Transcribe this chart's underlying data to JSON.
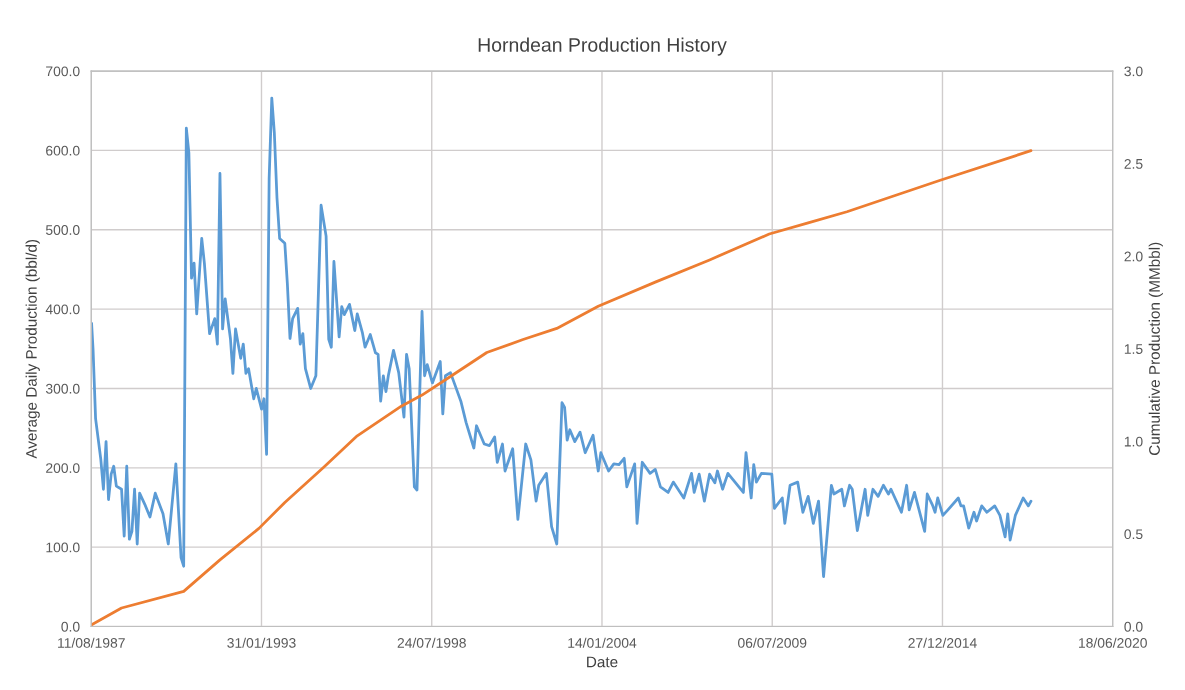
{
  "chart_data": {
    "type": "line",
    "title": "Horndean Production History",
    "xlabel": "Date",
    "ylabel": "Average Daily Production (bbl/d)",
    "y2label": "Cumulative Production (MMbbl)",
    "xlim": [
      "1987-08-11",
      "2020-06-18"
    ],
    "xticks": [
      {
        "value": "1987-08-11",
        "label": "11/08/1987"
      },
      {
        "value": "1993-01-31",
        "label": "31/01/1993"
      },
      {
        "value": "1998-07-24",
        "label": "24/07/1998"
      },
      {
        "value": "2004-01-14",
        "label": "14/01/2004"
      },
      {
        "value": "2009-07-06",
        "label": "06/07/2009"
      },
      {
        "value": "2014-12-27",
        "label": "27/12/2014"
      },
      {
        "value": "2020-06-18",
        "label": "18/06/2020"
      }
    ],
    "ylim": [
      0,
      700
    ],
    "yticks": [
      {
        "value": 0,
        "label": "0.0"
      },
      {
        "value": 100,
        "label": "100.0"
      },
      {
        "value": 200,
        "label": "200.0"
      },
      {
        "value": 300,
        "label": "300.0"
      },
      {
        "value": 400,
        "label": "400.0"
      },
      {
        "value": 500,
        "label": "500.0"
      },
      {
        "value": 600,
        "label": "600.0"
      },
      {
        "value": 700,
        "label": "700.0"
      }
    ],
    "y2lim": [
      0,
      3
    ],
    "y2ticks": [
      {
        "value": 0,
        "label": "0.0"
      },
      {
        "value": 0.5,
        "label": "0.5"
      },
      {
        "value": 1,
        "label": "1.0"
      },
      {
        "value": 1.5,
        "label": "1.5"
      },
      {
        "value": 2,
        "label": "2.0"
      },
      {
        "value": 2.5,
        "label": "2.5"
      },
      {
        "value": 3,
        "label": "3.0"
      }
    ],
    "grid": true,
    "marker": "none",
    "line_style": "solid",
    "series": [
      {
        "color": "#5b9bd5",
        "x": [
          "1987-08-15",
          "1987-09",
          "1987-10",
          "1987-12",
          "1988-01",
          "1988-02",
          "1988-03",
          "1988-04",
          "1988-05",
          "1988-06",
          "1988-08",
          "1988-09",
          "1988-10",
          "1988-11",
          "1988-12",
          "1989-01",
          "1989-02",
          "1989-03",
          "1989-05",
          "1989-07",
          "1989-09",
          "1989-12",
          "1990-02",
          "1990-05",
          "1990-07",
          "1990-08",
          "1990-09",
          "1990-10",
          "1990-11",
          "1990-12",
          "1991-01",
          "1991-03",
          "1991-04",
          "1991-06",
          "1991-08",
          "1991-09",
          "1991-10",
          "1991-11",
          "1991-12",
          "1992-02",
          "1992-03",
          "1992-04",
          "1992-06",
          "1992-07",
          "1992-08",
          "1992-09",
          "1992-11",
          "1992-12",
          "1993-02",
          "1993-03",
          "1993-04",
          "1993-05",
          "1993-06",
          "1993-07",
          "1993-08",
          "1993-09",
          "1993-11",
          "1993-12",
          "1994-01",
          "1994-02",
          "1994-04",
          "1994-05",
          "1994-06",
          "1994-07",
          "1994-09",
          "1994-11",
          "1995-01",
          "1995-03",
          "1995-04",
          "1995-05",
          "1995-06",
          "1995-08",
          "1995-09",
          "1995-10",
          "1995-12",
          "1996-02",
          "1996-03",
          "1996-05",
          "1996-06",
          "1996-08",
          "1996-10",
          "1996-11",
          "1996-12",
          "1997-01",
          "1997-02",
          "1997-03",
          "1997-05",
          "1997-07",
          "1997-09",
          "1997-10",
          "1997-11",
          "1998-01",
          "1998-02",
          "1998-04",
          "1998-05",
          "1998-06",
          "1998-08",
          "1998-11",
          "1998-12",
          "1999-01",
          "1999-03",
          "1999-05",
          "1999-07",
          "1999-09",
          "1999-12",
          "2000-01",
          "2000-04",
          "2000-06",
          "2000-08",
          "2000-09",
          "2000-11",
          "2000-12",
          "2001-03",
          "2001-05",
          "2001-08",
          "2001-10",
          "2001-12",
          "2002-01",
          "2002-04",
          "2002-06",
          "2002-08",
          "2002-10",
          "2002-11",
          "2002-12",
          "2003-01",
          "2003-03",
          "2003-05",
          "2003-07",
          "2003-10",
          "2003-12",
          "2004-01",
          "2004-04",
          "2004-06",
          "2004-08",
          "2004-10",
          "2004-11",
          "2005-02",
          "2005-03",
          "2005-05",
          "2005-08",
          "2005-10",
          "2005-12",
          "2006-03",
          "2006-05",
          "2006-09",
          "2006-12",
          "2007-01",
          "2007-03",
          "2007-05",
          "2007-07",
          "2007-09",
          "2007-10",
          "2007-12",
          "2008-02",
          "2008-08",
          "2008-09",
          "2008-11",
          "2008-12",
          "2009-01",
          "2009-03",
          "2009-07",
          "2009-08",
          "2009-11",
          "2009-12",
          "2010-02",
          "2010-05",
          "2010-07",
          "2010-09",
          "2010-11",
          "2011-01",
          "2011-03",
          "2011-06",
          "2011-07",
          "2011-10",
          "2011-11",
          "2012-01",
          "2012-02",
          "2012-04",
          "2012-07",
          "2012-08",
          "2012-10",
          "2012-12",
          "2013-02",
          "2013-04",
          "2013-05",
          "2013-09",
          "2013-11",
          "2013-12",
          "2014-02",
          "2014-06",
          "2014-07",
          "2014-09",
          "2014-10",
          "2014-11",
          "2015-01",
          "2015-03",
          "2015-07",
          "2015-08",
          "2015-09",
          "2015-11",
          "2016-01",
          "2016-02",
          "2016-04",
          "2016-06",
          "2016-09",
          "2016-11",
          "2017-01",
          "2017-02",
          "2017-03",
          "2017-05",
          "2017-08",
          "2017-10",
          "2017-11"
        ],
        "values": [
          382,
          350,
          262,
          211,
          173,
          233,
          160,
          192,
          202,
          177,
          173,
          114,
          202,
          110,
          120,
          173,
          104,
          168,
          154,
          138,
          168,
          142,
          104,
          205,
          87,
          76,
          628,
          597,
          439,
          458,
          394,
          489,
          458,
          369,
          388,
          356,
          571,
          375,
          413,
          363,
          319,
          375,
          338,
          356,
          319,
          325,
          287,
          300,
          274,
          287,
          217,
          565,
          666,
          622,
          540,
          489,
          483,
          432,
          363,
          388,
          401,
          356,
          369,
          325,
          300,
          316,
          531,
          492,
          362,
          352,
          460,
          365,
          403,
          393,
          406,
          373,
          394,
          370,
          352,
          368,
          345,
          343,
          284,
          316,
          296,
          316,
          348,
          320,
          264,
          343,
          325,
          176,
          172,
          397,
          316,
          330,
          307,
          334,
          268,
          316,
          320,
          302,
          284,
          257,
          225,
          253,
          230,
          228,
          239,
          207,
          230,
          196,
          224,
          135,
          230,
          210,
          158,
          178,
          193,
          126,
          104,
          282,
          276,
          235,
          248,
          233,
          245,
          219,
          241,
          196,
          219,
          196,
          205,
          204,
          212,
          176,
          205,
          130,
          207,
          193,
          198,
          176,
          169,
          182,
          162,
          193,
          169,
          192,
          158,
          192,
          181,
          196,
          173,
          193,
          169,
          219,
          162,
          204,
          182,
          193,
          192,
          149,
          162,
          130,
          178,
          182,
          144,
          164,
          130,
          158,
          63,
          178,
          167,
          173,
          152,
          178,
          173,
          121,
          173,
          140,
          173,
          164,
          178,
          167,
          173,
          144,
          178,
          147,
          169,
          120,
          167,
          153,
          144,
          162,
          140,
          147,
          162,
          152,
          152,
          124,
          144,
          133,
          152,
          144,
          152,
          140,
          113,
          142,
          109,
          140,
          162,
          152,
          158
        ]
      },
      {
        "color": "#ed7d31",
        "axis": "y2",
        "x": [
          "1987-08-15",
          "1988-08",
          "1990-08",
          "1991-10",
          "1993-01",
          "1993-11",
          "1995-02",
          "1996-03",
          "1997-08",
          "1998-04",
          "1999-04",
          "2000-05",
          "2001-07",
          "2002-08",
          "2003-12",
          "2005-10",
          "2007-07",
          "2009-06",
          "2010-09",
          "2011-12",
          "2014-12",
          "2017-11"
        ],
        "values": [
          0.01,
          0.1,
          0.19,
          0.36,
          0.53,
          0.67,
          0.86,
          1.03,
          1.19,
          1.25,
          1.36,
          1.48,
          1.55,
          1.61,
          1.73,
          1.86,
          1.98,
          2.12,
          2.18,
          2.24,
          2.41,
          2.57
        ]
      }
    ]
  }
}
